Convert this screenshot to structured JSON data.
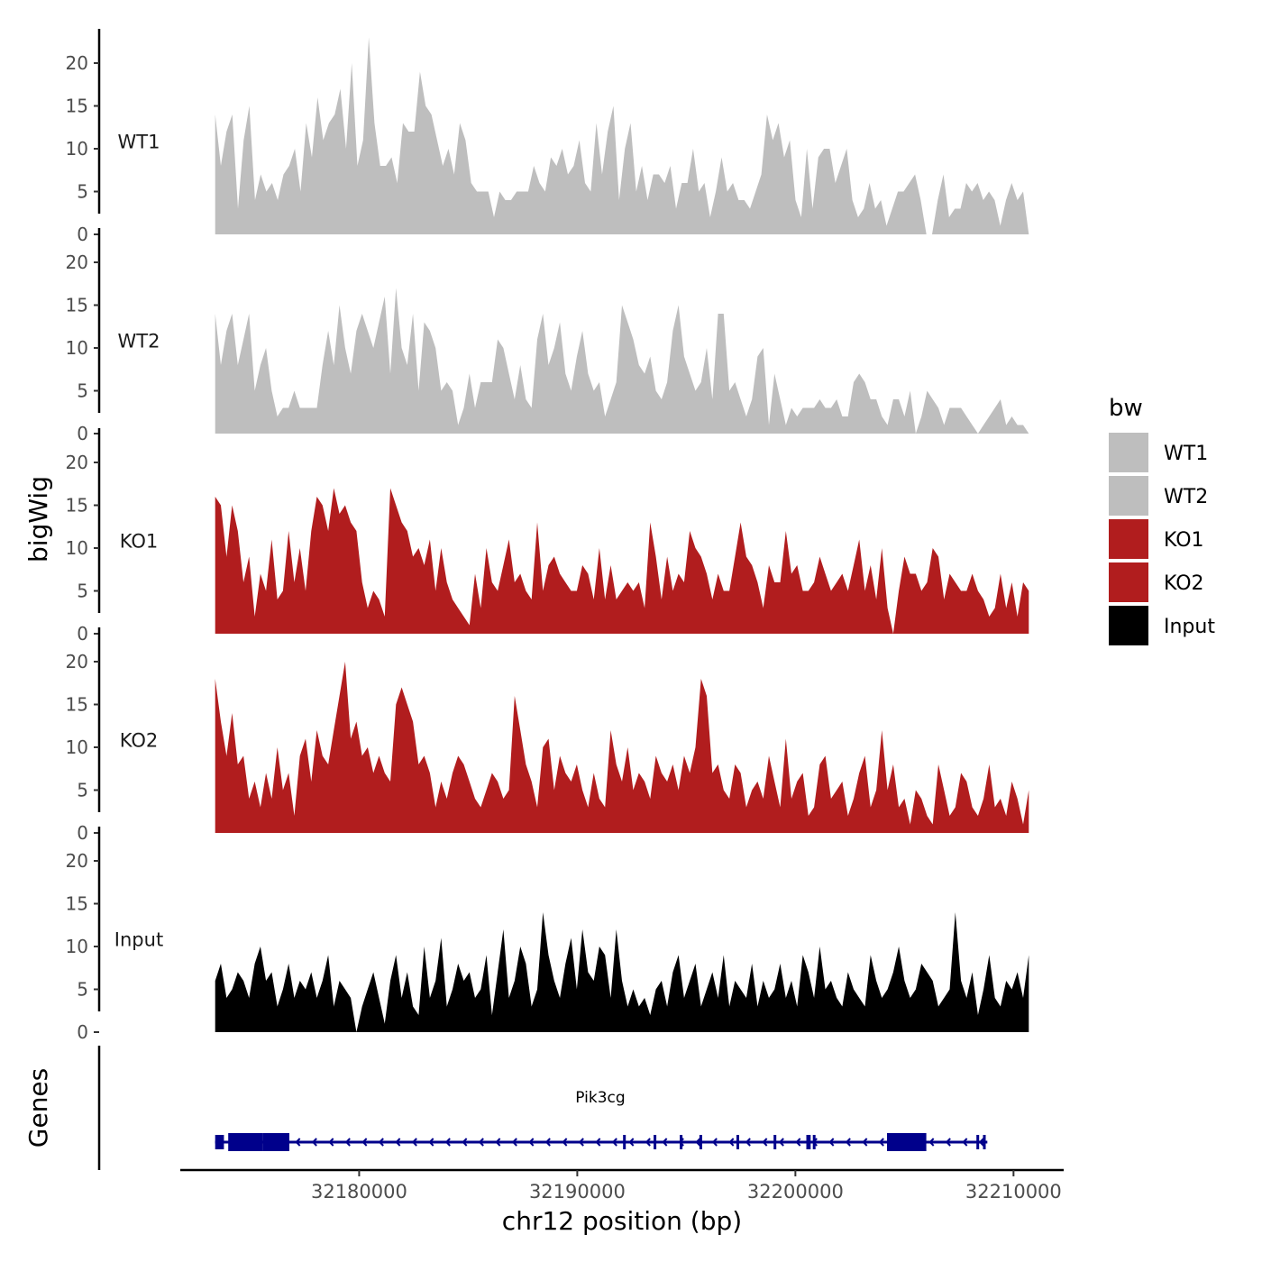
{
  "chart_data": {
    "type": "area",
    "ylabel": "bigWig",
    "genes_label": "Genes",
    "xlabel": "chr12 position (bp)",
    "x_range": [
      32173400,
      32210700
    ],
    "xlim": [
      32171800,
      32212300
    ],
    "x_ticks": [
      32180000,
      32190000,
      32200000,
      32210000
    ],
    "x_tick_labels": [
      "32180000",
      "32190000",
      "32200000",
      "32210000"
    ],
    "ylim": [
      0,
      24
    ],
    "y_ticks": [
      0,
      5,
      10,
      15,
      20
    ],
    "y_tick_labels": [
      "0",
      "5",
      "10",
      "15",
      "20"
    ],
    "tracks": [
      {
        "name": "WT1",
        "color": "#bebebe",
        "values": [
          14,
          8,
          12,
          14,
          3,
          11,
          15,
          4,
          7,
          5,
          6,
          4,
          7,
          8,
          10,
          5,
          13,
          9,
          16,
          11,
          13,
          14,
          17,
          10,
          20,
          8,
          11,
          23,
          13,
          8,
          8,
          9,
          6,
          13,
          12,
          12,
          19,
          15,
          14,
          11,
          8,
          10,
          7,
          13,
          11,
          6,
          5,
          5,
          5,
          2,
          5,
          4,
          4,
          5,
          5,
          5,
          8,
          6,
          5,
          9,
          8,
          10,
          7,
          8,
          11,
          6,
          5,
          13,
          7,
          12,
          15,
          4,
          10,
          13,
          5,
          8,
          4,
          7,
          7,
          6,
          8,
          3,
          6,
          6,
          10,
          5,
          6,
          2,
          5,
          9,
          5,
          6,
          4,
          4,
          3,
          5,
          7,
          14,
          11,
          13,
          9,
          11,
          4,
          2,
          10,
          3,
          9,
          10,
          10,
          6,
          8,
          10,
          4,
          2,
          3,
          6,
          3,
          4,
          1,
          3,
          5,
          5,
          6,
          7,
          4,
          0,
          0,
          4,
          7,
          2,
          3,
          3,
          6,
          5,
          6,
          4,
          5,
          4,
          1,
          4,
          6,
          4,
          5,
          0
        ]
      },
      {
        "name": "WT2",
        "color": "#bebebe",
        "values": [
          14,
          8,
          12,
          14,
          8,
          11,
          14,
          5,
          8,
          10,
          5,
          2,
          3,
          3,
          5,
          3,
          3,
          3,
          3,
          8,
          12,
          8,
          15,
          10,
          7,
          12,
          14,
          12,
          10,
          13,
          16,
          7,
          17,
          10,
          8,
          14,
          5,
          13,
          12,
          10,
          5,
          6,
          5,
          1,
          3,
          7,
          3,
          6,
          6,
          6,
          11,
          10,
          7,
          4,
          8,
          4,
          3,
          11,
          14,
          8,
          10,
          13,
          7,
          5,
          9,
          12,
          7,
          5,
          6,
          2,
          4,
          6,
          15,
          13,
          11,
          8,
          7,
          9,
          5,
          4,
          6,
          12,
          15,
          9,
          7,
          5,
          6,
          10,
          4,
          14,
          14,
          5,
          6,
          4,
          2,
          4,
          9,
          10,
          1,
          7,
          4,
          1,
          3,
          2,
          3,
          3,
          3,
          4,
          3,
          3,
          4,
          2,
          2,
          6,
          7,
          6,
          4,
          4,
          2,
          1,
          4,
          4,
          2,
          5,
          0,
          2,
          5,
          4,
          3,
          1,
          3,
          3,
          3,
          2,
          1,
          0,
          1,
          2,
          3,
          4,
          1,
          2,
          1,
          1,
          0
        ]
      },
      {
        "name": "KO1",
        "color": "#b11d1e",
        "values": [
          16,
          15,
          9,
          15,
          12,
          6,
          9,
          2,
          7,
          5,
          11,
          4,
          5,
          12,
          6,
          10,
          5,
          12,
          16,
          15,
          12,
          17,
          14,
          15,
          13,
          12,
          6,
          3,
          5,
          4,
          2,
          17,
          15,
          13,
          12,
          9,
          10,
          8,
          11,
          5,
          10,
          6,
          4,
          3,
          2,
          1,
          7,
          3,
          10,
          6,
          5,
          8,
          11,
          6,
          7,
          5,
          4,
          13,
          5,
          8,
          9,
          7,
          6,
          5,
          5,
          8,
          7,
          4,
          10,
          4,
          8,
          4,
          5,
          6,
          5,
          6,
          3,
          13,
          9,
          4,
          9,
          5,
          7,
          6,
          12,
          10,
          9,
          7,
          4,
          7,
          5,
          5,
          9,
          13,
          9,
          8,
          6,
          3,
          8,
          6,
          6,
          12,
          7,
          8,
          5,
          5,
          6,
          9,
          7,
          5,
          6,
          7,
          5,
          8,
          11,
          5,
          8,
          4,
          10,
          3,
          0,
          5,
          9,
          7,
          7,
          5,
          6,
          10,
          9,
          4,
          7,
          6,
          5,
          5,
          7,
          5,
          4,
          2,
          3,
          7,
          3,
          6,
          2,
          6,
          5
        ]
      },
      {
        "name": "KO2",
        "color": "#b11d1e",
        "values": [
          18,
          13,
          9,
          14,
          8,
          9,
          4,
          6,
          3,
          7,
          4,
          10,
          5,
          7,
          2,
          9,
          11,
          6,
          12,
          9,
          8,
          12,
          16,
          20,
          11,
          13,
          9,
          10,
          7,
          9,
          7,
          6,
          15,
          17,
          15,
          13,
          8,
          9,
          7,
          3,
          6,
          4,
          7,
          9,
          8,
          6,
          4,
          3,
          5,
          7,
          6,
          4,
          5,
          16,
          12,
          8,
          6,
          3,
          10,
          11,
          5,
          9,
          7,
          6,
          8,
          5,
          3,
          7,
          4,
          3,
          12,
          8,
          6,
          10,
          5,
          7,
          6,
          4,
          9,
          7,
          6,
          8,
          5,
          9,
          7,
          10,
          18,
          16,
          7,
          8,
          5,
          4,
          8,
          7,
          3,
          5,
          6,
          4,
          9,
          6,
          3,
          11,
          4,
          6,
          7,
          2,
          3,
          8,
          9,
          4,
          5,
          6,
          2,
          4,
          7,
          9,
          3,
          5,
          12,
          5,
          8,
          3,
          4,
          1,
          5,
          4,
          2,
          1,
          8,
          5,
          2,
          3,
          7,
          6,
          3,
          2,
          4,
          8,
          3,
          4,
          2,
          6,
          4,
          1,
          5
        ]
      },
      {
        "name": "Input",
        "color": "#000000",
        "values": [
          6,
          8,
          4,
          5,
          7,
          6,
          4,
          8,
          10,
          6,
          7,
          3,
          5,
          8,
          4,
          6,
          5,
          7,
          4,
          6,
          9,
          3,
          6,
          5,
          4,
          0,
          3,
          5,
          7,
          4,
          1,
          6,
          9,
          4,
          7,
          3,
          2,
          10,
          4,
          6,
          11,
          3,
          5,
          8,
          6,
          7,
          4,
          5,
          9,
          2,
          7,
          12,
          4,
          6,
          10,
          8,
          3,
          5,
          14,
          9,
          6,
          4,
          8,
          11,
          5,
          12,
          7,
          6,
          10,
          9,
          4,
          12,
          6,
          3,
          5,
          3,
          4,
          2,
          5,
          6,
          3,
          7,
          9,
          4,
          6,
          8,
          3,
          5,
          7,
          4,
          9,
          3,
          6,
          5,
          4,
          8,
          3,
          6,
          4,
          5,
          8,
          4,
          6,
          3,
          9,
          7,
          4,
          10,
          5,
          6,
          4,
          3,
          7,
          5,
          4,
          3,
          9,
          6,
          4,
          5,
          7,
          10,
          6,
          4,
          5,
          8,
          7,
          6,
          3,
          4,
          5,
          14,
          6,
          4,
          7,
          2,
          5,
          9,
          4,
          3,
          6,
          5,
          7,
          4,
          9
        ]
      }
    ],
    "legend": {
      "title": "bw",
      "position": "right",
      "entries": [
        {
          "label": "WT1",
          "color": "#bebebe"
        },
        {
          "label": "WT2",
          "color": "#bebebe"
        },
        {
          "label": "KO1",
          "color": "#b11d1e"
        },
        {
          "label": "KO2",
          "color": "#b11d1e"
        },
        {
          "label": "Input",
          "color": "#000000"
        }
      ]
    },
    "gene": {
      "name": "Pik3cg",
      "strand": "-",
      "color": "#00008b",
      "start": 32173400,
      "end": 32208800,
      "exons": [
        [
          32173400,
          32173800
        ],
        [
          32174000,
          32175600
        ],
        [
          32175600,
          32176800
        ],
        [
          32192100,
          32192200
        ],
        [
          32193500,
          32193600
        ],
        [
          32194700,
          32194800
        ],
        [
          32195600,
          32195700
        ],
        [
          32197300,
          32197400
        ],
        [
          32199000,
          32199100
        ],
        [
          32200500,
          32200700
        ],
        [
          32200800,
          32200900
        ],
        [
          32204200,
          32206000
        ],
        [
          32208300,
          32208400
        ],
        [
          32208600,
          32208700
        ]
      ]
    }
  }
}
